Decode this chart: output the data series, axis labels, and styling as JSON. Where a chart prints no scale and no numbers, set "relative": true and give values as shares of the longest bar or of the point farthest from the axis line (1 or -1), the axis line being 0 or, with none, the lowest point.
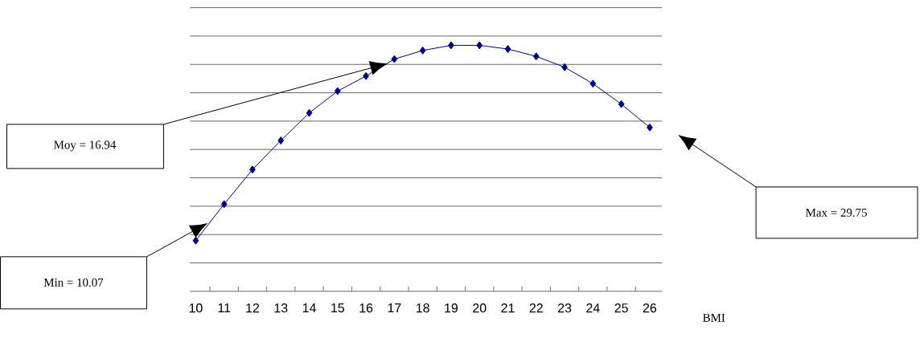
{
  "chart_data": {
    "type": "line",
    "relative": true,
    "xlabel": "BMI",
    "categories": [
      "10",
      "11",
      "12",
      "13",
      "14",
      "15",
      "16",
      "17",
      "18",
      "19",
      "20",
      "21",
      "22",
      "23",
      "24",
      "25",
      "26"
    ],
    "series": [
      {
        "color": "#000080",
        "values": [
          0.206,
          0.354,
          0.495,
          0.613,
          0.725,
          0.814,
          0.875,
          0.944,
          0.979,
          1,
          1,
          0.985,
          0.955,
          0.911,
          0.844,
          0.761,
          0.666
        ]
      }
    ],
    "marker": "diamond",
    "grid": "y",
    "annotations": [
      "Moy = 16.94",
      "Min = 10.07",
      "Max = 29.75"
    ]
  }
}
